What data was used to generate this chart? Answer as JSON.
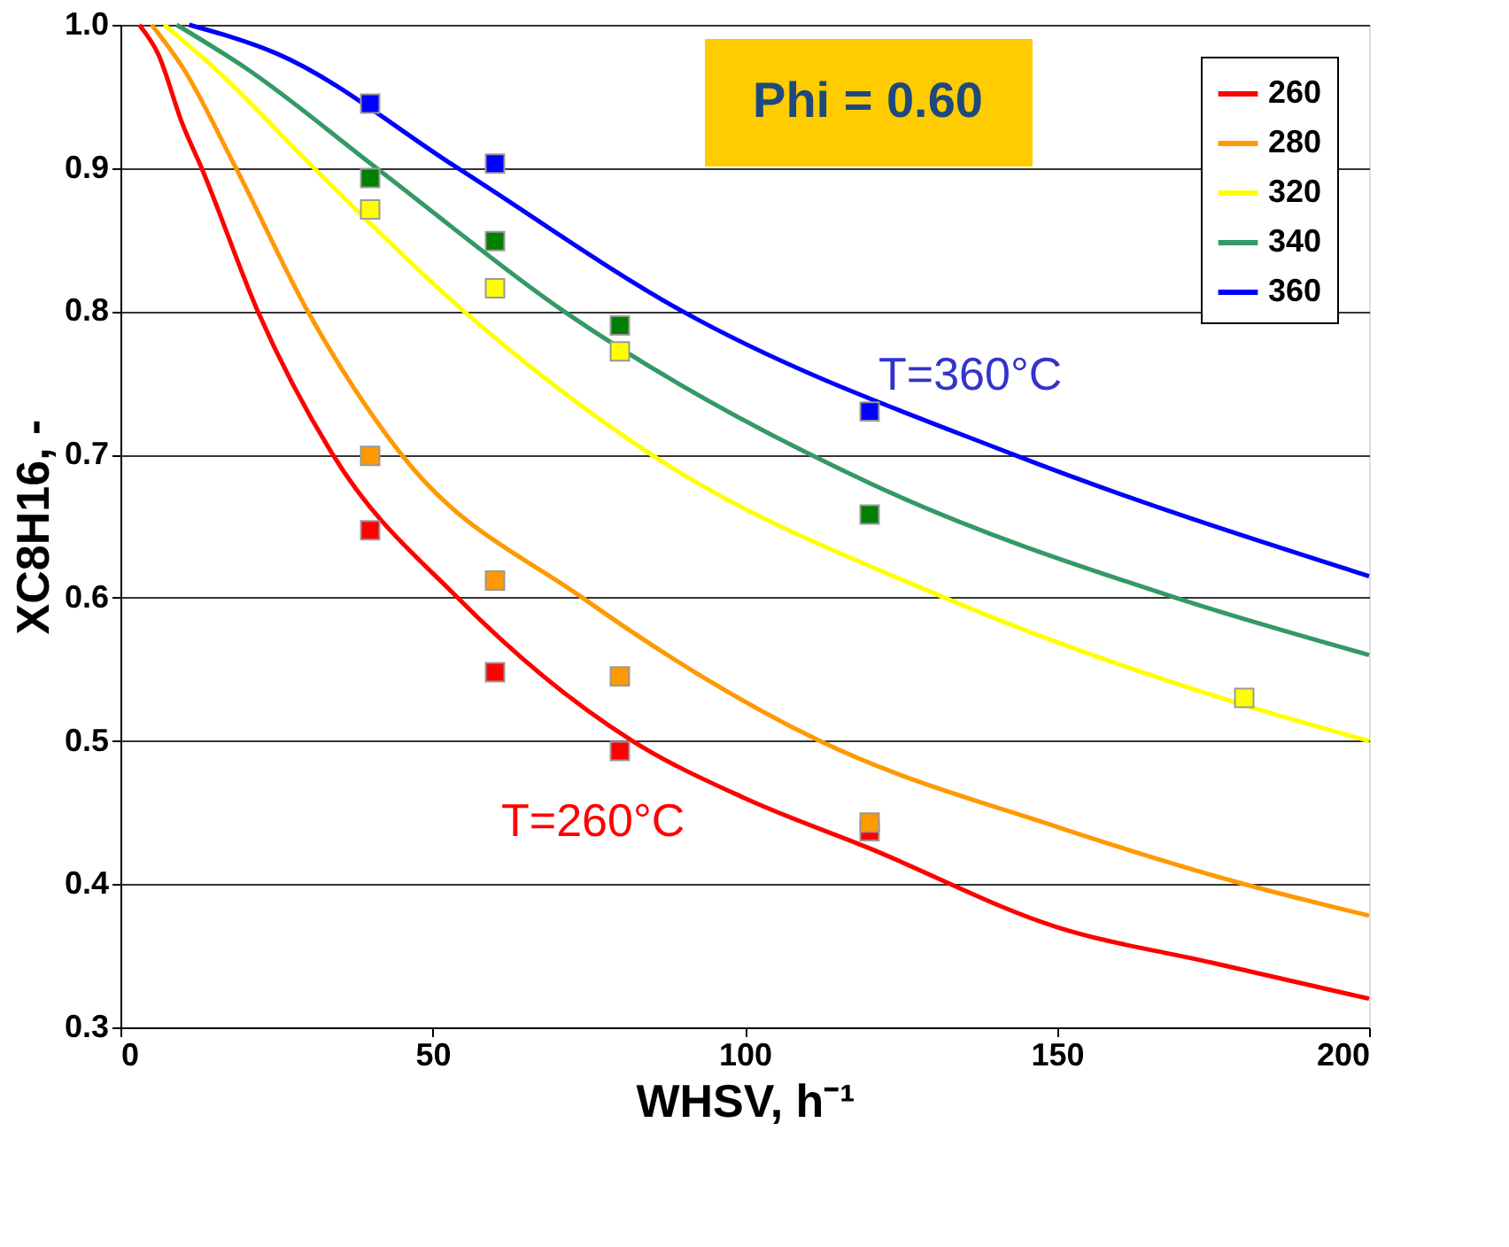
{
  "chart_data": {
    "type": "line",
    "xlabel": "WHSV, h⁻¹",
    "ylabel": "XC8H16, -",
    "xlim": [
      0,
      200
    ],
    "xticks": [
      0,
      50,
      100,
      150,
      200
    ],
    "ylim": [
      0.3,
      1.0
    ],
    "yticks": [
      0.3,
      0.4,
      0.5,
      0.6,
      0.7,
      0.8,
      0.9,
      {
        "value": 1.0,
        "label": "1.0"
      }
    ],
    "grid": "y",
    "legend": "top right",
    "line_style": "solid",
    "series": [
      {
        "name": "260",
        "color": "#ff0000",
        "x": [
          3,
          6,
          10,
          13,
          22,
          34,
          54,
          82,
          100,
          120,
          150,
          175,
          200
        ],
        "values": [
          1.0,
          0.98,
          0.93,
          0.9,
          0.8,
          0.7,
          0.6,
          0.5,
          0.46,
          0.425,
          0.37,
          0.345,
          0.32
        ]
      },
      {
        "name": "280",
        "color": "#ff9900",
        "x": [
          5,
          10,
          18.5,
          30,
          45,
          74,
          112,
          150,
          180,
          200
        ],
        "values": [
          1.0,
          0.97,
          0.9,
          0.8,
          0.7,
          0.6,
          0.5,
          0.44,
          0.4,
          0.378
        ]
      },
      {
        "name": "320",
        "color": "#ffff00",
        "x": [
          7,
          15,
          31,
          55,
          85,
          132,
          180,
          200
        ],
        "values": [
          1.0,
          0.97,
          0.9,
          0.8,
          0.7,
          0.6,
          0.525,
          0.5
        ]
      },
      {
        "name": "340",
        "color": "#339966",
        "x": [
          9,
          20,
          41,
          71,
          120,
          169,
          200
        ],
        "values": [
          1.0,
          0.97,
          0.9,
          0.8,
          0.68,
          0.6,
          0.56
        ]
      },
      {
        "name": "360",
        "color": "#0000ff",
        "x": [
          11,
          25,
          54,
          90,
          143,
          200
        ],
        "values": [
          1.0,
          0.98,
          0.9,
          0.8,
          0.7,
          0.615
        ]
      },
      {
        "type": "scatter",
        "marker": "square",
        "color": "#ff0000",
        "x": [
          40,
          60,
          80,
          120
        ],
        "values": [
          0.647,
          0.548,
          0.493,
          0.437
        ]
      },
      {
        "type": "scatter",
        "marker": "square",
        "color": "#ff9900",
        "x": [
          40,
          60,
          80,
          120
        ],
        "values": [
          0.699,
          0.612,
          0.545,
          0.443
        ]
      },
      {
        "type": "scatter",
        "marker": "square",
        "color": "#ffff00",
        "x": [
          40,
          60,
          80,
          180
        ],
        "values": [
          0.871,
          0.816,
          0.772,
          0.53
        ]
      },
      {
        "type": "scatter",
        "marker": "square",
        "color": "#008000",
        "x": [
          40,
          60,
          80,
          120
        ],
        "values": [
          0.893,
          0.849,
          0.79,
          0.658
        ]
      },
      {
        "type": "scatter",
        "marker": "square",
        "color": "#0000ff",
        "x": [
          40,
          60,
          120
        ],
        "values": [
          0.945,
          0.903,
          0.73
        ]
      }
    ],
    "annotations": [
      "Phi = 0.60",
      "T=360°C",
      "T=260°C"
    ]
  }
}
